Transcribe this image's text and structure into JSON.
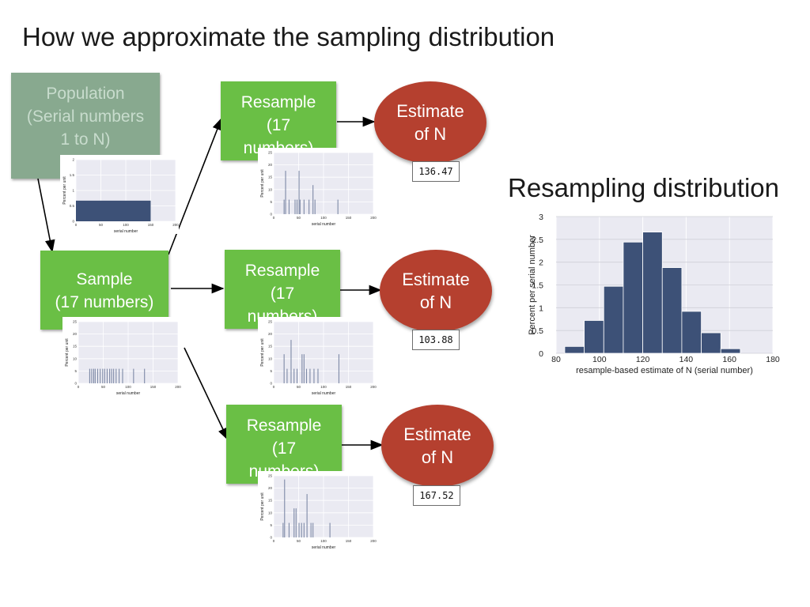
{
  "title": "How we approximate the sampling distribution",
  "population": {
    "label": "Population\n(Serial numbers\n1 to N)",
    "chart": {
      "ylabel": "Percent per unit",
      "xlabel": "serial number",
      "yticks": [
        "0",
        "0.5",
        "1",
        "1.5",
        "2"
      ],
      "xticks": [
        "0",
        "50",
        "100",
        "150",
        "200"
      ]
    }
  },
  "sample": {
    "label": "Sample\n(17 numbers)",
    "chart": {
      "ylabel": "Percent per unit",
      "xlabel": "serial number",
      "yticks": [
        "0",
        "5",
        "10",
        "15",
        "20",
        "25"
      ],
      "xticks": [
        "0",
        "50",
        "100",
        "150",
        "200"
      ]
    }
  },
  "resamples": [
    {
      "label": "Resample\n(17\nnumbers)",
      "estimate_label": "Estimate\nof N",
      "estimate_value": "136.47"
    },
    {
      "label": "Resample\n(17\nnumbers)",
      "estimate_label": "Estimate\nof N",
      "estimate_value": "103.88"
    },
    {
      "label": "Resample\n(17\nnumbers)",
      "estimate_label": "Estimate\nof N",
      "estimate_value": "167.52"
    }
  ],
  "resample_chart": {
    "ylabel": "Percent per unit",
    "xlabel": "serial number",
    "yticks": [
      "0",
      "5",
      "10",
      "15",
      "20",
      "25"
    ],
    "xticks": [
      "0",
      "50",
      "100",
      "150",
      "200"
    ]
  },
  "colors": {
    "box_green": "#6abf45",
    "population_gray": "#88a98f",
    "estimate_red": "#b5402f",
    "bar_navy": "#3d5177"
  },
  "resampling_distribution": {
    "heading": "Resampling distribution",
    "chart_data": {
      "type": "bar",
      "title": "",
      "xlabel": "resample-based estimate of N (serial number)",
      "ylabel": "Percent per serial number",
      "xlim": [
        80,
        180
      ],
      "ylim": [
        0,
        3
      ],
      "xticks": [
        "80",
        "100",
        "120",
        "140",
        "160",
        "180"
      ],
      "yticks": [
        "0",
        "0.5",
        "1",
        "1.5",
        "2",
        "2.5",
        "3"
      ],
      "bin_edges": [
        84,
        93,
        102,
        111,
        120,
        129,
        138,
        147,
        156,
        165
      ],
      "values": [
        0.15,
        0.72,
        1.47,
        2.44,
        2.66,
        1.88,
        0.92,
        0.45,
        0.1
      ],
      "grid": true
    }
  }
}
